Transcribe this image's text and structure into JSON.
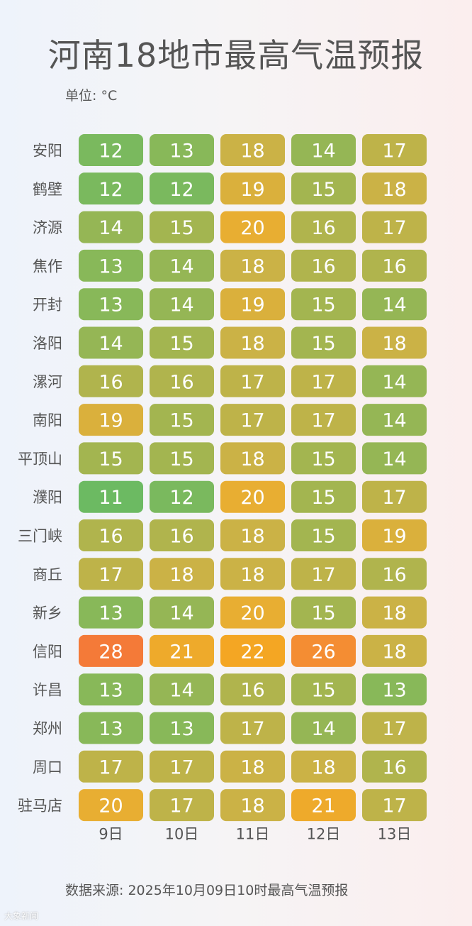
{
  "title": "河南18地市最高气温预报",
  "unit_label": "单位: °C",
  "source_label": "数据来源: 2025年10月09日10时最高气温预报",
  "watermark": "大象新闻",
  "chart_data": {
    "type": "heatmap",
    "title": "河南18地市最高气温预报",
    "unit": "°C",
    "x_categories": [
      "9日",
      "10日",
      "11日",
      "12日",
      "13日"
    ],
    "y_categories": [
      "安阳",
      "鹤壁",
      "济源",
      "焦作",
      "开封",
      "洛阳",
      "漯河",
      "南阳",
      "平顶山",
      "濮阳",
      "三门峡",
      "商丘",
      "新乡",
      "信阳",
      "许昌",
      "郑州",
      "周口",
      "驻马店"
    ],
    "values": [
      [
        12,
        13,
        18,
        14,
        17
      ],
      [
        12,
        12,
        19,
        15,
        18
      ],
      [
        14,
        15,
        20,
        16,
        17
      ],
      [
        13,
        14,
        18,
        16,
        16
      ],
      [
        13,
        14,
        19,
        15,
        14
      ],
      [
        14,
        15,
        18,
        15,
        18
      ],
      [
        16,
        16,
        17,
        17,
        14
      ],
      [
        19,
        15,
        17,
        17,
        14
      ],
      [
        15,
        15,
        18,
        15,
        14
      ],
      [
        11,
        12,
        20,
        15,
        17
      ],
      [
        16,
        16,
        18,
        15,
        19
      ],
      [
        17,
        18,
        18,
        17,
        16
      ],
      [
        13,
        14,
        20,
        15,
        18
      ],
      [
        28,
        21,
        22,
        26,
        18
      ],
      [
        13,
        14,
        16,
        15,
        13
      ],
      [
        13,
        13,
        17,
        14,
        17
      ],
      [
        17,
        17,
        18,
        18,
        16
      ],
      [
        20,
        17,
        18,
        21,
        17
      ]
    ],
    "color_scale": {
      "stops": [
        {
          "value": 11,
          "color": "#6cba62"
        },
        {
          "value": 15,
          "color": "#a3b550"
        },
        {
          "value": 18,
          "color": "#cbb246"
        },
        {
          "value": 20,
          "color": "#e8ae32"
        },
        {
          "value": 22,
          "color": "#f4a623"
        },
        {
          "value": 26,
          "color": "#f48d33"
        },
        {
          "value": 28,
          "color": "#f47a38"
        }
      ]
    },
    "cell_text_color": "#ffffff",
    "label_color": "#555555"
  }
}
